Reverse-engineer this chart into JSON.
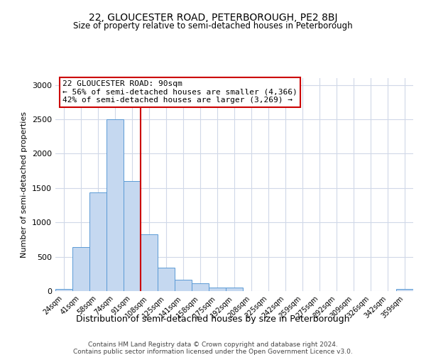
{
  "title1": "22, GLOUCESTER ROAD, PETERBOROUGH, PE2 8BJ",
  "title2": "Size of property relative to semi-detached houses in Peterborough",
  "xlabel": "Distribution of semi-detached houses by size in Peterborough",
  "ylabel": "Number of semi-detached properties",
  "footer1": "Contains HM Land Registry data © Crown copyright and database right 2024.",
  "footer2": "Contains public sector information licensed under the Open Government Licence v3.0.",
  "categories": [
    "24sqm",
    "41sqm",
    "58sqm",
    "74sqm",
    "91sqm",
    "108sqm",
    "125sqm",
    "141sqm",
    "158sqm",
    "175sqm",
    "192sqm",
    "208sqm",
    "225sqm",
    "242sqm",
    "259sqm",
    "275sqm",
    "292sqm",
    "309sqm",
    "326sqm",
    "342sqm",
    "359sqm"
  ],
  "bar_values": [
    30,
    640,
    1440,
    2500,
    1600,
    830,
    340,
    170,
    115,
    50,
    50,
    0,
    0,
    0,
    0,
    0,
    0,
    0,
    0,
    0,
    30
  ],
  "bar_color": "#c5d8f0",
  "bar_edge_color": "#5b9bd5",
  "vline_color": "#cc0000",
  "annotation_title": "22 GLOUCESTER ROAD: 90sqm",
  "annotation_line1": "← 56% of semi-detached houses are smaller (4,366)",
  "annotation_line2": "42% of semi-detached houses are larger (3,269) →",
  "annotation_box_color": "#ffffff",
  "annotation_box_edge": "#cc0000",
  "ylim": [
    0,
    3100
  ],
  "yticks": [
    0,
    500,
    1000,
    1500,
    2000,
    2500,
    3000
  ],
  "background_color": "#ffffff",
  "grid_color": "#d0d8e8"
}
